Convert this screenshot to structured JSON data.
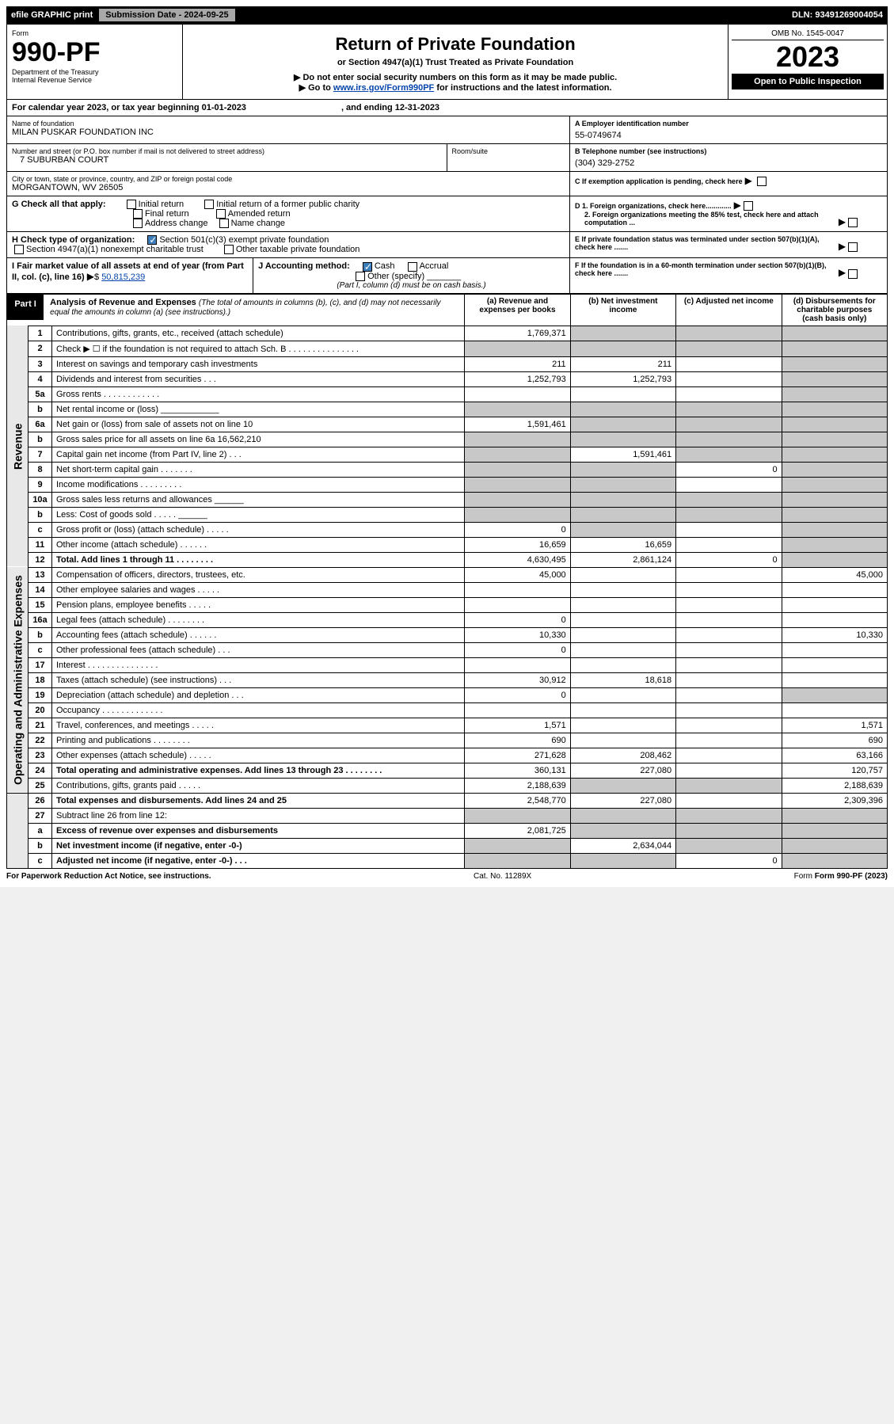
{
  "topbar": {
    "efile": "efile GRAPHIC print",
    "subdate_label": "Submission Date - 2024-09-25",
    "dln": "DLN: 93491269004054"
  },
  "header": {
    "form": "Form",
    "formnum": "990-PF",
    "dept": "Department of the Treasury",
    "irs": "Internal Revenue Service",
    "title": "Return of Private Foundation",
    "subtitle": "or Section 4947(a)(1) Trust Treated as Private Foundation",
    "note1": "▶ Do not enter social security numbers on this form as it may be made public.",
    "note2": "▶ Go to ",
    "link": "www.irs.gov/Form990PF",
    "note3": " for instructions and the latest information.",
    "omb": "OMB No. 1545-0047",
    "year": "2023",
    "open": "Open to Public Inspection"
  },
  "calyear": {
    "text1": "For calendar year 2023, or tax year beginning ",
    "begin": "01-01-2023",
    "text2": ", and ending ",
    "end": "12-31-2023"
  },
  "nameblock": {
    "name_lbl": "Name of foundation",
    "name": "MILAN PUSKAR FOUNDATION INC",
    "addr_lbl": "Number and street (or P.O. box number if mail is not delivered to street address)",
    "addr": "7 SUBURBAN COURT",
    "room_lbl": "Room/suite",
    "city_lbl": "City or town, state or province, country, and ZIP or foreign postal code",
    "city": "MORGANTOWN, WV  26505",
    "ein_lbl": "A Employer identification number",
    "ein": "55-0749674",
    "phone_lbl": "B Telephone number (see instructions)",
    "phone": "(304) 329-2752",
    "C": "C If exemption application is pending, check here",
    "D1": "D 1. Foreign organizations, check here.............",
    "D2": "2. Foreign organizations meeting the 85% test, check here and attach computation ...",
    "E": "E  If private foundation status was terminated under section 507(b)(1)(A), check here .......",
    "F": "F  If the foundation is in a 60-month termination under section 507(b)(1)(B), check here .......",
    "G_lbl": "G Check all that apply:",
    "G_initial": "Initial return",
    "G_initial_former": "Initial return of a former public charity",
    "G_final": "Final return",
    "G_amended": "Amended return",
    "G_address": "Address change",
    "G_name": "Name change",
    "H_lbl": "H Check type of organization:",
    "H_501c3": "Section 501(c)(3) exempt private foundation",
    "H_4947": "Section 4947(a)(1) nonexempt charitable trust",
    "H_other": "Other taxable private foundation",
    "I_lbl": "I Fair market value of all assets at end of year (from Part II, col. (c), line 16)",
    "I_val": "50,815,239",
    "J_lbl": "J Accounting method:",
    "J_cash": "Cash",
    "J_accrual": "Accrual",
    "J_other": "Other (specify)",
    "J_note": "(Part I, column (d) must be on cash basis.)"
  },
  "partI": {
    "label": "Part I",
    "title": "Analysis of Revenue and Expenses",
    "subtitle": "(The total of amounts in columns (b), (c), and (d) may not necessarily equal the amounts in column (a) (see instructions).)",
    "col_a": "(a) Revenue and expenses per books",
    "col_b": "(b) Net investment income",
    "col_c": "(c) Adjusted net income",
    "col_d": "(d) Disbursements for charitable purposes (cash basis only)"
  },
  "sections": {
    "revenue": "Revenue",
    "opex": "Operating and Administrative Expenses"
  },
  "rows": [
    {
      "n": "1",
      "lbl": "Contributions, gifts, grants, etc., received (attach schedule)",
      "a": "1,769,371",
      "b": "",
      "c": "",
      "d": "",
      "shade_b": true,
      "shade_c": true,
      "shade_d": true
    },
    {
      "n": "2",
      "lbl": "Check ▶ ☐ if the foundation is not required to attach Sch. B   . . . . . . . . . . . . . . .",
      "a": "",
      "b": "",
      "c": "",
      "d": "",
      "shade_a": true,
      "shade_b": true,
      "shade_c": true,
      "shade_d": true
    },
    {
      "n": "3",
      "lbl": "Interest on savings and temporary cash investments",
      "a": "211",
      "b": "211",
      "c": "",
      "d": "",
      "shade_d": true
    },
    {
      "n": "4",
      "lbl": "Dividends and interest from securities   . . .",
      "a": "1,252,793",
      "b": "1,252,793",
      "c": "",
      "d": "",
      "shade_d": true
    },
    {
      "n": "5a",
      "lbl": "Gross rents   . . . . . . . . . . . .",
      "a": "",
      "b": "",
      "c": "",
      "d": "",
      "shade_d": true
    },
    {
      "n": "b",
      "lbl": "Net rental income or (loss)   ____________",
      "a": "",
      "b": "",
      "c": "",
      "d": "",
      "shade_a": true,
      "shade_b": true,
      "shade_c": true,
      "shade_d": true
    },
    {
      "n": "6a",
      "lbl": "Net gain or (loss) from sale of assets not on line 10",
      "a": "1,591,461",
      "b": "",
      "c": "",
      "d": "",
      "shade_b": true,
      "shade_c": true,
      "shade_d": true
    },
    {
      "n": "b",
      "lbl": "Gross sales price for all assets on line 6a    16,562,210",
      "a": "",
      "b": "",
      "c": "",
      "d": "",
      "shade_a": true,
      "shade_b": true,
      "shade_c": true,
      "shade_d": true
    },
    {
      "n": "7",
      "lbl": "Capital gain net income (from Part IV, line 2)   . . .",
      "a": "",
      "b": "1,591,461",
      "c": "",
      "d": "",
      "shade_a": true,
      "shade_c": true,
      "shade_d": true
    },
    {
      "n": "8",
      "lbl": "Net short-term capital gain   . . . . . . .",
      "a": "",
      "b": "",
      "c": "0",
      "d": "",
      "shade_a": true,
      "shade_b": true,
      "shade_d": true
    },
    {
      "n": "9",
      "lbl": "Income modifications   . . . . . . . . .",
      "a": "",
      "b": "",
      "c": "",
      "d": "",
      "shade_a": true,
      "shade_b": true,
      "shade_d": true
    },
    {
      "n": "10a",
      "lbl": "Gross sales less returns and allowances   ______",
      "a": "",
      "b": "",
      "c": "",
      "d": "",
      "shade_a": true,
      "shade_b": true,
      "shade_c": true,
      "shade_d": true
    },
    {
      "n": "b",
      "lbl": "Less: Cost of goods sold   . . . . .  ______",
      "a": "",
      "b": "",
      "c": "",
      "d": "",
      "shade_a": true,
      "shade_b": true,
      "shade_c": true,
      "shade_d": true
    },
    {
      "n": "c",
      "lbl": "Gross profit or (loss) (attach schedule)   . . . . .",
      "a": "0",
      "b": "",
      "c": "",
      "d": "",
      "shade_b": true,
      "shade_d": true
    },
    {
      "n": "11",
      "lbl": "Other income (attach schedule)   . . . . . .",
      "a": "16,659",
      "b": "16,659",
      "c": "",
      "d": "",
      "shade_d": true
    },
    {
      "n": "12",
      "lbl": "Total. Add lines 1 through 11   . . . . . . . .",
      "a": "4,630,495",
      "b": "2,861,124",
      "c": "0",
      "d": "",
      "bold": true,
      "shade_d": true
    },
    {
      "n": "13",
      "lbl": "Compensation of officers, directors, trustees, etc.",
      "a": "45,000",
      "b": "",
      "c": "",
      "d": "45,000"
    },
    {
      "n": "14",
      "lbl": "Other employee salaries and wages   . . . . .",
      "a": "",
      "b": "",
      "c": "",
      "d": ""
    },
    {
      "n": "15",
      "lbl": "Pension plans, employee benefits   . . . . .",
      "a": "",
      "b": "",
      "c": "",
      "d": ""
    },
    {
      "n": "16a",
      "lbl": "Legal fees (attach schedule)   . . . . . . . .",
      "a": "0",
      "b": "",
      "c": "",
      "d": ""
    },
    {
      "n": "b",
      "lbl": "Accounting fees (attach schedule)   . . . . . .",
      "a": "10,330",
      "b": "",
      "c": "",
      "d": "10,330"
    },
    {
      "n": "c",
      "lbl": "Other professional fees (attach schedule)   . . .",
      "a": "0",
      "b": "",
      "c": "",
      "d": ""
    },
    {
      "n": "17",
      "lbl": "Interest   . . . . . . . . . . . . . . .",
      "a": "",
      "b": "",
      "c": "",
      "d": ""
    },
    {
      "n": "18",
      "lbl": "Taxes (attach schedule) (see instructions)   . . .",
      "a": "30,912",
      "b": "18,618",
      "c": "",
      "d": ""
    },
    {
      "n": "19",
      "lbl": "Depreciation (attach schedule) and depletion   . . .",
      "a": "0",
      "b": "",
      "c": "",
      "d": "",
      "shade_d": true
    },
    {
      "n": "20",
      "lbl": "Occupancy   . . . . . . . . . . . . .",
      "a": "",
      "b": "",
      "c": "",
      "d": ""
    },
    {
      "n": "21",
      "lbl": "Travel, conferences, and meetings   . . . . .",
      "a": "1,571",
      "b": "",
      "c": "",
      "d": "1,571"
    },
    {
      "n": "22",
      "lbl": "Printing and publications   . . . . . . . .",
      "a": "690",
      "b": "",
      "c": "",
      "d": "690"
    },
    {
      "n": "23",
      "lbl": "Other expenses (attach schedule)   . . . . .",
      "a": "271,628",
      "b": "208,462",
      "c": "",
      "d": "63,166"
    },
    {
      "n": "24",
      "lbl": "Total operating and administrative expenses. Add lines 13 through 23   . . . . . . . .",
      "a": "360,131",
      "b": "227,080",
      "c": "",
      "d": "120,757",
      "bold": true
    },
    {
      "n": "25",
      "lbl": "Contributions, gifts, grants paid   . . . . .",
      "a": "2,188,639",
      "b": "",
      "c": "",
      "d": "2,188,639",
      "shade_b": true,
      "shade_c": true
    },
    {
      "n": "26",
      "lbl": "Total expenses and disbursements. Add lines 24 and 25",
      "a": "2,548,770",
      "b": "227,080",
      "c": "",
      "d": "2,309,396",
      "bold": true
    },
    {
      "n": "27",
      "lbl": "Subtract line 26 from line 12:",
      "a": "",
      "b": "",
      "c": "",
      "d": "",
      "shade_a": true,
      "shade_b": true,
      "shade_c": true,
      "shade_d": true
    },
    {
      "n": "a",
      "lbl": "Excess of revenue over expenses and disbursements",
      "a": "2,081,725",
      "b": "",
      "c": "",
      "d": "",
      "bold": true,
      "shade_b": true,
      "shade_c": true,
      "shade_d": true
    },
    {
      "n": "b",
      "lbl": "Net investment income (if negative, enter -0-)",
      "a": "",
      "b": "2,634,044",
      "c": "",
      "d": "",
      "bold": true,
      "shade_a": true,
      "shade_c": true,
      "shade_d": true
    },
    {
      "n": "c",
      "lbl": "Adjusted net income (if negative, enter -0-)   . . .",
      "a": "",
      "b": "",
      "c": "0",
      "d": "",
      "bold": true,
      "shade_a": true,
      "shade_b": true,
      "shade_d": true
    }
  ],
  "footer": {
    "pra": "For Paperwork Reduction Act Notice, see instructions.",
    "cat": "Cat. No. 11289X",
    "form": "Form 990-PF (2023)"
  },
  "revenue_end_idx": 15,
  "opex_end_idx": 30
}
